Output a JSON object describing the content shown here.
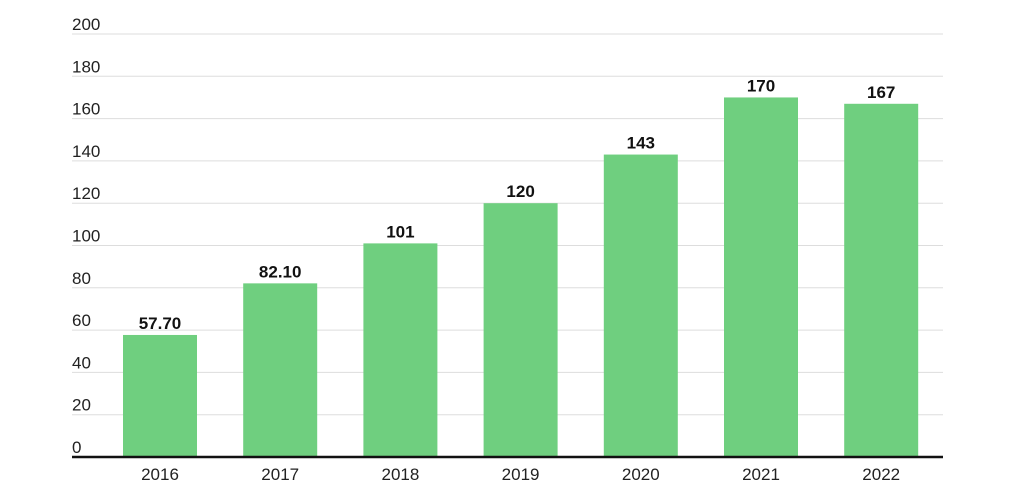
{
  "chart_data": {
    "type": "bar",
    "title": "",
    "xlabel": "",
    "ylabel": "",
    "categories": [
      "2016",
      "2017",
      "2018",
      "2019",
      "2020",
      "2021",
      "2022"
    ],
    "values": [
      57.7,
      82.1,
      101,
      120,
      143,
      170,
      167
    ],
    "data_labels": [
      "57.70",
      "82.10",
      "101",
      "120",
      "143",
      "170",
      "167"
    ],
    "ylim": [
      0,
      200
    ],
    "yticks": [
      0,
      20,
      40,
      60,
      80,
      100,
      120,
      140,
      160,
      180,
      200
    ],
    "grid": true,
    "legend": "none",
    "colors": {
      "bar": "#6fcf7f",
      "grid": "#dddddd",
      "axis": "#111111"
    }
  }
}
